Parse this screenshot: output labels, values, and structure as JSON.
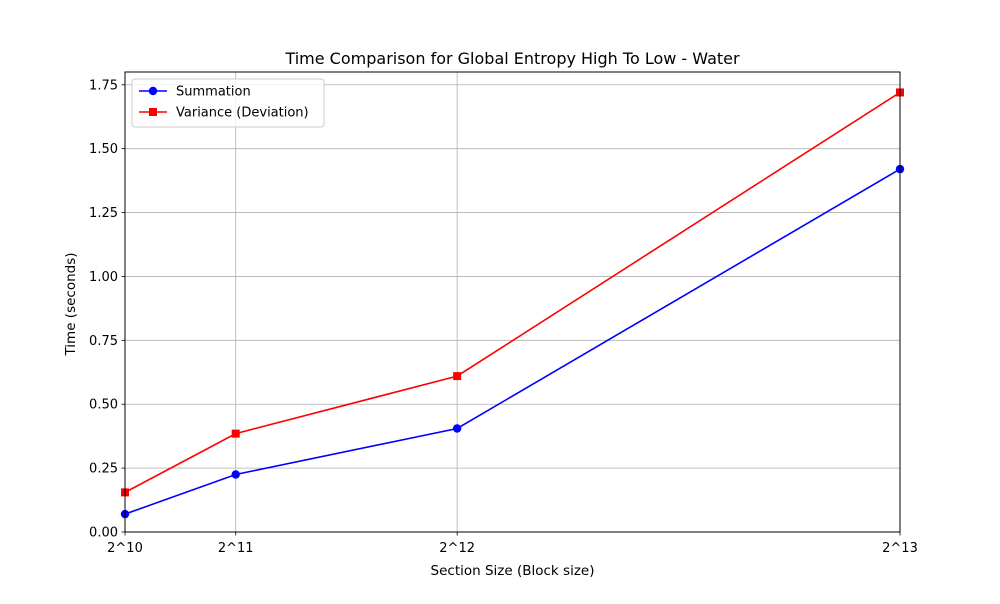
{
  "chart_data": {
    "type": "line",
    "title": "Time Comparison for Global Entropy High To Low - Water",
    "xlabel": "Section Size (Block size)",
    "ylabel": "Time (seconds)",
    "x": [
      1024,
      2048,
      4096,
      8192
    ],
    "x_tick_labels": [
      "2^10",
      "2^11",
      "2^12",
      "2^13"
    ],
    "xlim": [
      1024,
      8192
    ],
    "ylim": [
      0,
      1.8
    ],
    "y_ticks": [
      0.0,
      0.25,
      0.5,
      0.75,
      1.0,
      1.25,
      1.5,
      1.75
    ],
    "y_tick_labels": [
      "0.00",
      "0.25",
      "0.50",
      "0.75",
      "1.00",
      "1.25",
      "1.50",
      "1.75"
    ],
    "grid": true,
    "legend_position": "top-left",
    "series": [
      {
        "name": "Summation",
        "color": "#0000ff",
        "marker": "circle",
        "values": [
          0.07,
          0.225,
          0.405,
          1.42
        ]
      },
      {
        "name": "Variance (Deviation)",
        "color": "#ff0000",
        "marker": "square",
        "values": [
          0.155,
          0.385,
          0.61,
          1.72
        ]
      }
    ]
  }
}
